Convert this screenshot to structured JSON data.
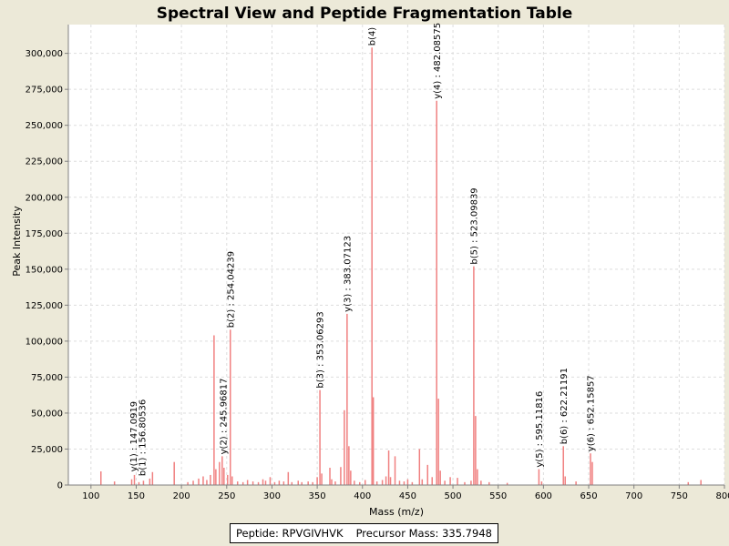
{
  "chart_data": {
    "type": "bar",
    "title": "Spectral View and Peptide Fragmentation Table",
    "xlabel": "Mass (m/z)",
    "ylabel": "Peak Intensity",
    "xlim": [
      75,
      800
    ],
    "ylim": [
      0,
      320000
    ],
    "x_ticks": [
      100,
      150,
      200,
      250,
      300,
      350,
      400,
      450,
      500,
      550,
      600,
      650,
      700,
      750,
      800
    ],
    "y_ticks": [
      0,
      25000,
      50000,
      75000,
      100000,
      125000,
      150000,
      175000,
      200000,
      225000,
      250000,
      275000,
      300000
    ],
    "y_tick_labels": [
      "0",
      "25,000",
      "50,000",
      "75,000",
      "100,000",
      "125,000",
      "150,000",
      "175,000",
      "200,000",
      "225,000",
      "250,000",
      "275,000",
      "300,000"
    ],
    "grid": true,
    "bar_color": "#f08080",
    "annotated_peaks": [
      {
        "mz": 147.0,
        "intensity": 8000,
        "label": "y(1) : 147.0919"
      },
      {
        "mz": 156.8,
        "intensity": 5000,
        "label": "b(1) : 156.80536"
      },
      {
        "mz": 245.97,
        "intensity": 20000,
        "label": "y(2) : 245.96817"
      },
      {
        "mz": 254.04,
        "intensity": 108000,
        "label": "b(2) : 254.04239"
      },
      {
        "mz": 353.06,
        "intensity": 66000,
        "label": "b(3) : 353.06293"
      },
      {
        "mz": 383.07,
        "intensity": 119000,
        "label": "y(3) : 383.07123"
      },
      {
        "mz": 410.5,
        "intensity": 304000,
        "label": "b(4)"
      },
      {
        "mz": 482.09,
        "intensity": 267000,
        "label": "y(4) : 482.08575"
      },
      {
        "mz": 523.1,
        "intensity": 152000,
        "label": "b(5) : 523.09839"
      },
      {
        "mz": 595.12,
        "intensity": 11000,
        "label": "y(5) : 595.11816"
      },
      {
        "mz": 622.21,
        "intensity": 27000,
        "label": "b(6) : 622.21191"
      },
      {
        "mz": 652.16,
        "intensity": 22000,
        "label": "y(6) : 652.15857"
      }
    ],
    "peaks": [
      [
        111,
        9500
      ],
      [
        126,
        2500
      ],
      [
        145,
        4000
      ],
      [
        148,
        7000
      ],
      [
        153,
        2000
      ],
      [
        158,
        3000
      ],
      [
        165,
        4500
      ],
      [
        168,
        9000
      ],
      [
        192,
        16000
      ],
      [
        207,
        2000
      ],
      [
        213,
        3000
      ],
      [
        219,
        4500
      ],
      [
        224,
        6000
      ],
      [
        228,
        3500
      ],
      [
        232,
        7000
      ],
      [
        236,
        104000
      ],
      [
        238,
        11000
      ],
      [
        242,
        16000
      ],
      [
        245,
        20000
      ],
      [
        247,
        12000
      ],
      [
        251,
        7000
      ],
      [
        254,
        108000
      ],
      [
        256,
        6000
      ],
      [
        262,
        2500
      ],
      [
        268,
        2000
      ],
      [
        273,
        3500
      ],
      [
        279,
        2500
      ],
      [
        285,
        2000
      ],
      [
        290,
        4000
      ],
      [
        293,
        3000
      ],
      [
        298,
        5500
      ],
      [
        303,
        2000
      ],
      [
        308,
        3000
      ],
      [
        313,
        2500
      ],
      [
        318,
        9000
      ],
      [
        322,
        2000
      ],
      [
        329,
        3000
      ],
      [
        333,
        2000
      ],
      [
        340,
        2500
      ],
      [
        345,
        2000
      ],
      [
        350,
        5500
      ],
      [
        353,
        66000
      ],
      [
        355,
        8000
      ],
      [
        364,
        12000
      ],
      [
        366,
        4000
      ],
      [
        370,
        2500
      ],
      [
        376,
        12500
      ],
      [
        380,
        52000
      ],
      [
        383,
        119000
      ],
      [
        385,
        27000
      ],
      [
        387,
        10000
      ],
      [
        391,
        3000
      ],
      [
        397,
        2000
      ],
      [
        403,
        3500
      ],
      [
        410.5,
        304000
      ],
      [
        412,
        61000
      ],
      [
        416,
        2500
      ],
      [
        422,
        3500
      ],
      [
        426,
        6000
      ],
      [
        429,
        24000
      ],
      [
        431,
        5500
      ],
      [
        436,
        20000
      ],
      [
        441,
        3000
      ],
      [
        446,
        2500
      ],
      [
        450,
        4000
      ],
      [
        455,
        2000
      ],
      [
        463,
        25000
      ],
      [
        466,
        4000
      ],
      [
        472,
        14000
      ],
      [
        477,
        5500
      ],
      [
        482,
        267000
      ],
      [
        484,
        60000
      ],
      [
        486,
        10000
      ],
      [
        491,
        3000
      ],
      [
        497,
        5500
      ],
      [
        505,
        5000
      ],
      [
        513,
        2000
      ],
      [
        520,
        3000
      ],
      [
        523,
        152000
      ],
      [
        525,
        48000
      ],
      [
        527,
        11000
      ],
      [
        531,
        3000
      ],
      [
        540,
        2000
      ],
      [
        560,
        1500
      ],
      [
        595,
        11000
      ],
      [
        598,
        2500
      ],
      [
        622,
        27000
      ],
      [
        624,
        6000
      ],
      [
        636,
        2500
      ],
      [
        652,
        22000
      ],
      [
        654,
        16000
      ],
      [
        760,
        2000
      ],
      [
        774,
        3500
      ]
    ]
  },
  "info_box": {
    "peptide": "Peptide: RPVGIVHVK",
    "precursor": "Precursor Mass: 335.7948"
  }
}
